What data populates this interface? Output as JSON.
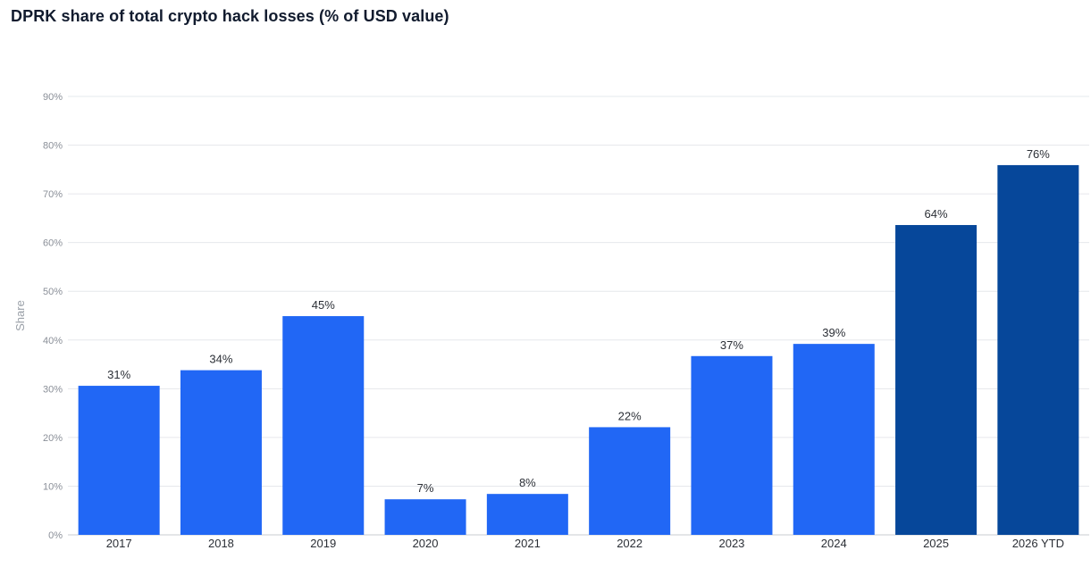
{
  "chart_data": {
    "type": "bar",
    "title": "DPRK share of total crypto hack losses (% of USD value)",
    "ylabel": "Share",
    "xlabel": "",
    "ylim": [
      0,
      90
    ],
    "yticks": [
      0,
      10,
      20,
      30,
      40,
      50,
      60,
      70,
      80,
      90
    ],
    "ytick_labels": [
      "0%",
      "10%",
      "20%",
      "30%",
      "40%",
      "50%",
      "60%",
      "70%",
      "80%",
      "90%"
    ],
    "grid": true,
    "categories": [
      "2017",
      "2018",
      "2019",
      "2020",
      "2021",
      "2022",
      "2023",
      "2024",
      "2025",
      "2026 YTD"
    ],
    "values": [
      30.6,
      33.8,
      44.9,
      7.3,
      8.4,
      22.1,
      36.7,
      39.2,
      63.6,
      75.9
    ],
    "value_labels": [
      "31%",
      "34%",
      "45%",
      "7%",
      "8%",
      "22%",
      "37%",
      "39%",
      "64%",
      "76%"
    ],
    "colors": [
      "#2167f5",
      "#2167f5",
      "#2167f5",
      "#2167f5",
      "#2167f5",
      "#2167f5",
      "#2167f5",
      "#2167f5",
      "#06479a",
      "#06479a"
    ]
  }
}
